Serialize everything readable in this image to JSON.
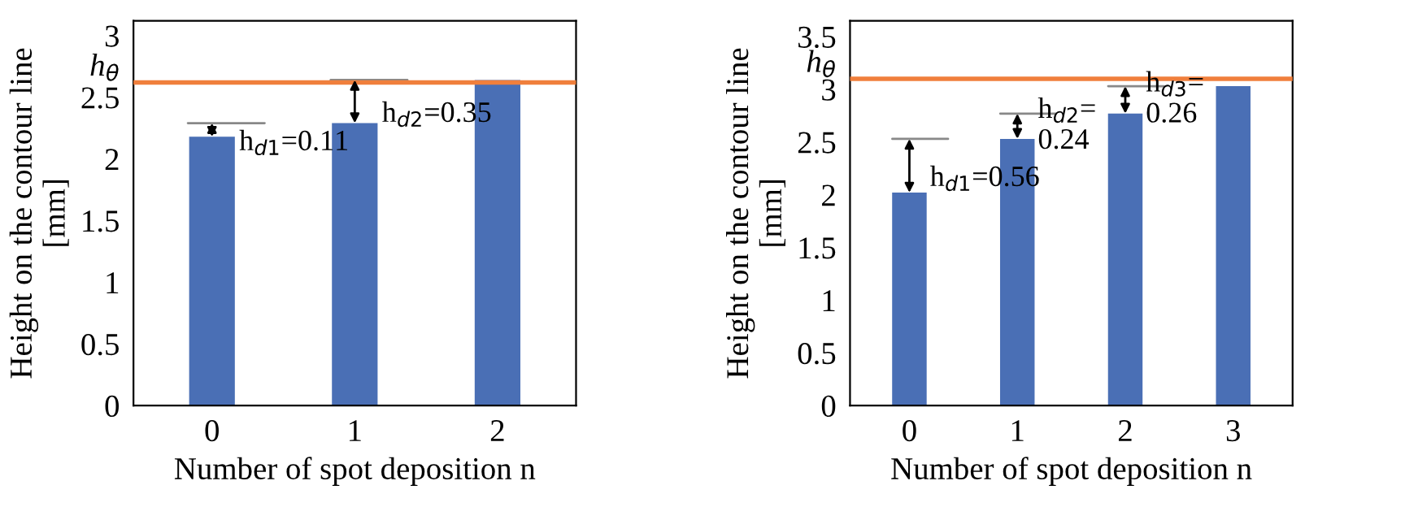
{
  "chart_data": [
    {
      "type": "bar",
      "categories": [
        "0",
        "1",
        "2"
      ],
      "values": [
        2.18,
        2.29,
        2.64
      ],
      "color": "#4a6fb5",
      "xlabel": "Number of spot deposition n",
      "ylabel": "Height on the contour line\n[mm]",
      "ylim": [
        0,
        3.12
      ],
      "yticks": [
        0,
        0.5,
        1,
        1.5,
        2,
        2.5,
        3
      ],
      "grid": false,
      "ref_lines": [
        {
          "axis": "y",
          "value": 2.62,
          "label": "h$_{θ}$",
          "color": "#f07f3c"
        }
      ],
      "annotations": [
        {
          "text": "h$_{d1}$=0.11",
          "x": "0",
          "y": 2.18
        },
        {
          "text": "h$_{d2}$=0.35",
          "x": "1",
          "y": 2.29
        }
      ]
    },
    {
      "type": "bar",
      "categories": [
        "0",
        "1",
        "2",
        "3"
      ],
      "values": [
        2.02,
        2.53,
        2.77,
        3.03
      ],
      "color": "#4a6fb5",
      "xlabel": "Number of spot deposition n",
      "ylabel": "Height on the contour line\n[mm]",
      "ylim": [
        0,
        3.65
      ],
      "yticks": [
        0,
        0.5,
        1,
        1.5,
        2,
        2.5,
        3,
        3.5
      ],
      "grid": false,
      "ref_lines": [
        {
          "axis": "y",
          "value": 3.1,
          "label": "h$_{θ}$",
          "color": "#f07f3c"
        }
      ],
      "annotations": [
        {
          "text": "h$_{d1}$=0.56",
          "x": "0",
          "y": 2.02
        },
        {
          "text": "h$_{d2}$=\n0.24",
          "x": "1",
          "y": 2.53
        },
        {
          "text": "h$_{d3}$=\n0.26",
          "x": "2",
          "y": 2.77
        }
      ]
    }
  ]
}
